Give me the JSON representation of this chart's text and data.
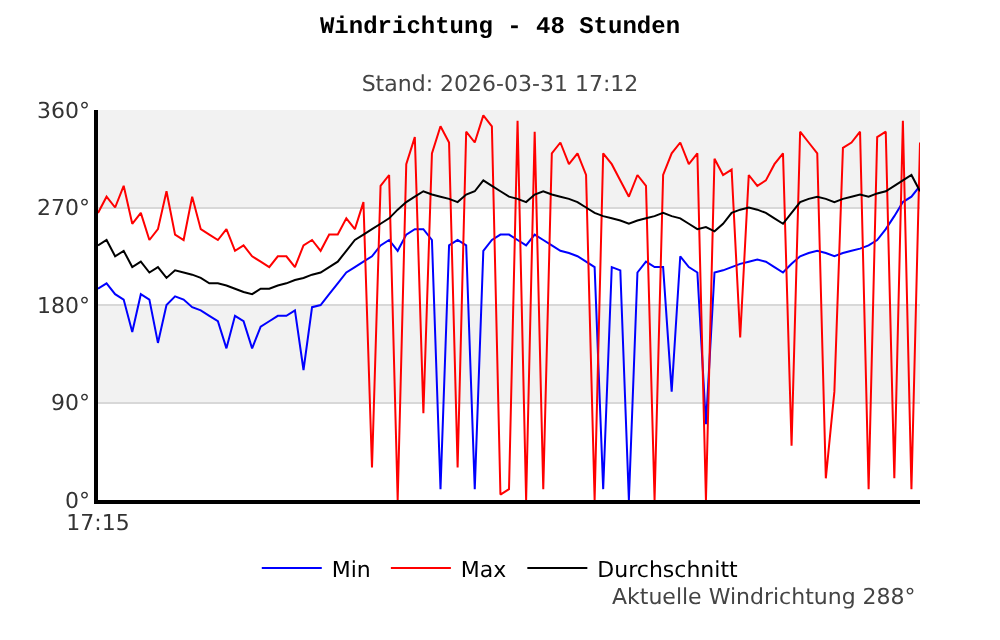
{
  "chart_data": {
    "type": "line",
    "title": "Windrichtung - 48 Stunden",
    "subtitle": "Stand: 2026-03-31 17:12",
    "annotations": [
      "Aktuelle Windrichtung 288°"
    ],
    "categories": [
      "17:15",
      null,
      null,
      null,
      null,
      null,
      null,
      null,
      null,
      null,
      null,
      null,
      null,
      null,
      null,
      null,
      null,
      null,
      null,
      null,
      null,
      null,
      null,
      null,
      null,
      null,
      null,
      null,
      null,
      null,
      null,
      null,
      null,
      null,
      null,
      null,
      null,
      null,
      null,
      null,
      null,
      null,
      null,
      null,
      null,
      null,
      null,
      null,
      null,
      null,
      null,
      null,
      null,
      null,
      null,
      null,
      null,
      null,
      null,
      null,
      null,
      null,
      null,
      null,
      null,
      null,
      null,
      null,
      null,
      null,
      null,
      null,
      null,
      null,
      null,
      null,
      null,
      null,
      null,
      null,
      null,
      null,
      null,
      null,
      null,
      null,
      null,
      null,
      null,
      null,
      null,
      null,
      null,
      null,
      null,
      null,
      null
    ],
    "series": [
      {
        "name": "Min",
        "color": "#0000ff",
        "values": [
          195,
          200,
          190,
          185,
          155,
          190,
          185,
          145,
          180,
          188,
          185,
          178,
          175,
          170,
          165,
          140,
          170,
          165,
          140,
          160,
          165,
          170,
          170,
          175,
          120,
          178,
          180,
          190,
          200,
          210,
          215,
          220,
          225,
          235,
          240,
          230,
          245,
          250,
          250,
          240,
          10,
          235,
          240,
          235,
          10,
          230,
          240,
          245,
          245,
          240,
          235,
          245,
          240,
          235,
          230,
          228,
          225,
          220,
          215,
          10,
          215,
          212,
          0,
          210,
          220,
          215,
          215,
          100,
          225,
          215,
          210,
          70,
          210,
          212,
          215,
          218,
          220,
          222,
          220,
          215,
          210,
          218,
          225,
          228,
          230,
          228,
          225,
          228,
          230,
          232,
          235,
          240,
          250,
          262,
          275,
          280,
          290
        ]
      },
      {
        "name": "Max",
        "color": "#ff0000",
        "values": [
          265,
          280,
          270,
          290,
          255,
          265,
          240,
          250,
          285,
          245,
          240,
          280,
          250,
          245,
          240,
          250,
          230,
          235,
          225,
          220,
          215,
          225,
          225,
          215,
          235,
          240,
          230,
          245,
          245,
          260,
          250,
          275,
          30,
          290,
          300,
          0,
          310,
          335,
          80,
          320,
          345,
          330,
          30,
          340,
          330,
          355,
          345,
          5,
          10,
          350,
          0,
          340,
          10,
          320,
          330,
          310,
          320,
          300,
          0,
          320,
          310,
          295,
          280,
          300,
          290,
          0,
          300,
          320,
          330,
          310,
          320,
          0,
          315,
          300,
          305,
          150,
          300,
          290,
          295,
          310,
          320,
          50,
          340,
          330,
          320,
          20,
          100,
          325,
          330,
          340,
          10,
          335,
          340,
          20,
          350,
          10,
          330
        ]
      },
      {
        "name": "Durchschnitt",
        "color": "#000000",
        "values": [
          235,
          240,
          225,
          230,
          215,
          220,
          210,
          215,
          205,
          212,
          210,
          208,
          205,
          200,
          200,
          198,
          195,
          192,
          190,
          195,
          195,
          198,
          200,
          203,
          205,
          208,
          210,
          215,
          220,
          230,
          240,
          245,
          250,
          255,
          260,
          268,
          275,
          280,
          285,
          282,
          280,
          278,
          275,
          282,
          285,
          295,
          290,
          285,
          280,
          278,
          275,
          282,
          285,
          282,
          280,
          278,
          275,
          270,
          265,
          262,
          260,
          258,
          255,
          258,
          260,
          262,
          265,
          262,
          260,
          255,
          250,
          252,
          248,
          255,
          265,
          268,
          270,
          268,
          265,
          260,
          255,
          265,
          275,
          278,
          280,
          278,
          275,
          278,
          280,
          282,
          280,
          283,
          285,
          290,
          295,
          300,
          285
        ]
      }
    ],
    "ylim": [
      0,
      360
    ],
    "yticks": [
      {
        "value": 0,
        "label": "0°"
      },
      {
        "value": 90,
        "label": "90°"
      },
      {
        "value": 180,
        "label": "180°"
      },
      {
        "value": 270,
        "label": "270°"
      },
      {
        "value": 360,
        "label": "360°"
      }
    ],
    "bands": [
      {
        "axis": "y",
        "from": 90,
        "to": 180,
        "color": "#f2f2f2"
      },
      {
        "axis": "y",
        "from": 270,
        "to": 360,
        "color": "#f2f2f2"
      }
    ],
    "grid": "y",
    "legend": "bottom",
    "marker": "none",
    "line_style": "solid"
  }
}
